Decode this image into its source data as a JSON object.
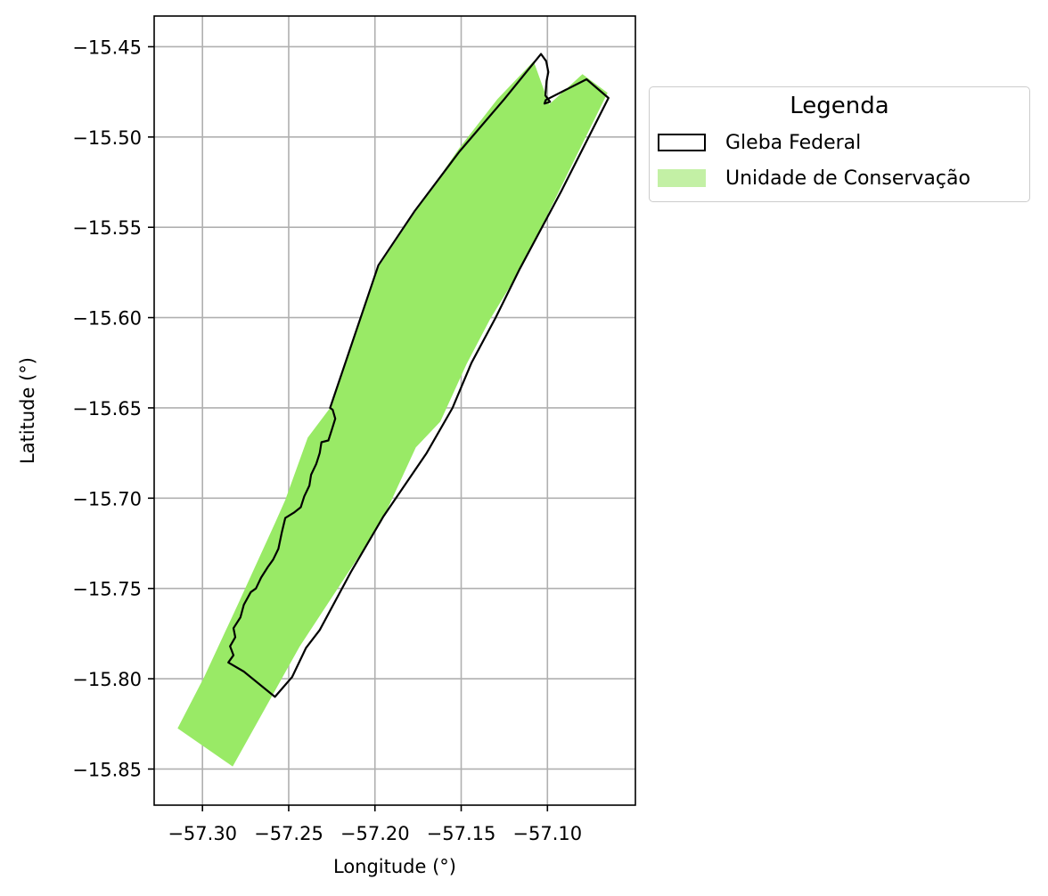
{
  "chart_data": {
    "type": "map",
    "xlabel": "Longitude (°)",
    "ylabel": "Latitude (°)",
    "xlim": [
      -57.328,
      -57.049
    ],
    "ylim": [
      -15.87,
      -15.433
    ],
    "grid": true,
    "x_ticks": [
      {
        "value": -57.3,
        "label": "−57.30"
      },
      {
        "value": -57.25,
        "label": "−57.25"
      },
      {
        "value": -57.2,
        "label": "−57.20"
      },
      {
        "value": -57.15,
        "label": "−57.15"
      },
      {
        "value": -57.1,
        "label": "−57.10"
      }
    ],
    "y_ticks": [
      {
        "value": -15.45,
        "label": "−15.45"
      },
      {
        "value": -15.5,
        "label": "−15.50"
      },
      {
        "value": -15.55,
        "label": "−15.55"
      },
      {
        "value": -15.6,
        "label": "−15.60"
      },
      {
        "value": -15.65,
        "label": "−15.65"
      },
      {
        "value": -15.7,
        "label": "−15.70"
      },
      {
        "value": -15.75,
        "label": "−15.75"
      },
      {
        "value": -15.8,
        "label": "−15.80"
      },
      {
        "value": -15.85,
        "label": "−15.85"
      }
    ],
    "legend": {
      "title": "Legenda",
      "placement": "outside-right-top",
      "entries": [
        {
          "label": "Gleba Federal",
          "style": "outline",
          "color": "#000000"
        },
        {
          "label": "Unidade de Conservação",
          "style": "fill",
          "color": "#99EA66"
        }
      ]
    },
    "layers": [
      {
        "name": "Unidade de Conservação",
        "style": "fill",
        "color": "#99EA66",
        "coordinates": [
          [
            -57.0797,
            -15.4652
          ],
          [
            -57.0651,
            -15.4755
          ],
          [
            -57.1155,
            -15.573
          ],
          [
            -57.1334,
            -15.6012
          ],
          [
            -57.1469,
            -15.6258
          ],
          [
            -57.1621,
            -15.6576
          ],
          [
            -57.1763,
            -15.6719
          ],
          [
            -57.1961,
            -15.7129
          ],
          [
            -57.2437,
            -15.7822
          ],
          [
            -57.2825,
            -15.8486
          ],
          [
            -57.3144,
            -15.8275
          ],
          [
            -57.299,
            -15.799
          ],
          [
            -57.279,
            -15.7579
          ],
          [
            -57.258,
            -15.7139
          ],
          [
            -57.252,
            -15.701
          ],
          [
            -57.239,
            -15.6665
          ],
          [
            -57.226,
            -15.65
          ],
          [
            -57.198,
            -15.572
          ],
          [
            -57.177,
            -15.542
          ],
          [
            -57.151,
            -15.506
          ],
          [
            -57.129,
            -15.479
          ],
          [
            -57.108,
            -15.458
          ],
          [
            -57.099,
            -15.482
          ],
          [
            -57.0797,
            -15.4652
          ]
        ]
      },
      {
        "name": "Gleba Federal",
        "style": "outline",
        "color": "#000000",
        "coordinates": [
          [
            -57.1037,
            -15.454
          ],
          [
            -57.1007,
            -15.458
          ],
          [
            -57.0995,
            -15.464
          ],
          [
            -57.1005,
            -15.469
          ],
          [
            -57.1012,
            -15.477
          ],
          [
            -57.0985,
            -15.4805
          ],
          [
            -57.1017,
            -15.4815
          ],
          [
            -57.101,
            -15.4795
          ],
          [
            -57.0773,
            -15.468
          ],
          [
            -57.0646,
            -15.4784
          ],
          [
            -57.092,
            -15.53
          ],
          [
            -57.116,
            -15.573
          ],
          [
            -57.13,
            -15.6
          ],
          [
            -57.144,
            -15.625
          ],
          [
            -57.155,
            -15.65
          ],
          [
            -57.17,
            -15.675
          ],
          [
            -57.195,
            -15.71
          ],
          [
            -57.214,
            -15.741
          ],
          [
            -57.232,
            -15.773
          ],
          [
            -57.24,
            -15.783
          ],
          [
            -57.248,
            -15.799
          ],
          [
            -57.258,
            -15.81
          ],
          [
            -57.276,
            -15.796
          ],
          [
            -57.285,
            -15.791
          ],
          [
            -57.282,
            -15.787
          ],
          [
            -57.284,
            -15.782
          ],
          [
            -57.281,
            -15.777
          ],
          [
            -57.282,
            -15.772
          ],
          [
            -57.278,
            -15.766
          ],
          [
            -57.276,
            -15.759
          ],
          [
            -57.272,
            -15.752
          ],
          [
            -57.269,
            -15.75
          ],
          [
            -57.266,
            -15.744
          ],
          [
            -57.262,
            -15.738
          ],
          [
            -57.259,
            -15.734
          ],
          [
            -57.256,
            -15.728
          ],
          [
            -57.254,
            -15.719
          ],
          [
            -57.252,
            -15.711
          ],
          [
            -57.247,
            -15.708
          ],
          [
            -57.243,
            -15.705
          ],
          [
            -57.241,
            -15.699
          ],
          [
            -57.238,
            -15.693
          ],
          [
            -57.237,
            -15.687
          ],
          [
            -57.234,
            -15.681
          ],
          [
            -57.232,
            -15.675
          ],
          [
            -57.231,
            -15.669
          ],
          [
            -57.227,
            -15.668
          ],
          [
            -57.225,
            -15.662
          ],
          [
            -57.223,
            -15.656
          ],
          [
            -57.2245,
            -15.651
          ],
          [
            -57.226,
            -15.65
          ],
          [
            -57.198,
            -15.571
          ],
          [
            -57.177,
            -15.541
          ],
          [
            -57.151,
            -15.508
          ],
          [
            -57.125,
            -15.479
          ],
          [
            -57.1037,
            -15.454
          ]
        ]
      }
    ]
  }
}
